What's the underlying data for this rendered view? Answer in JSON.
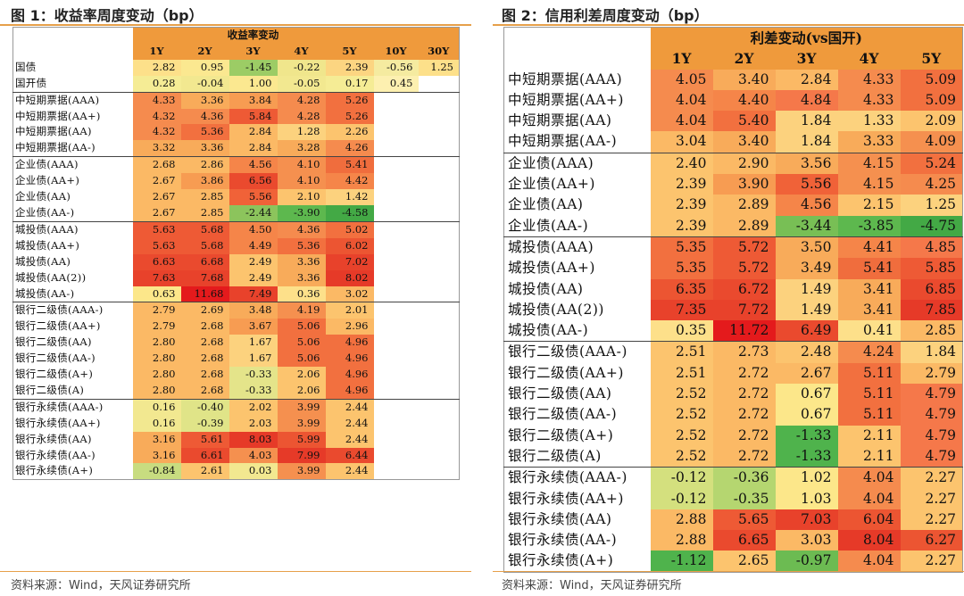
{
  "fig1": {
    "title": "图 1：收益率周度变动（bp）",
    "header_group": "收益率变动",
    "columns": [
      "1Y",
      "2Y",
      "3Y",
      "4Y",
      "5Y",
      "10Y",
      "30Y"
    ],
    "source": "资料来源：Wind，天风证券研究所",
    "rows": [
      {
        "name": "国债",
        "values": [
          "2.82",
          "0.95",
          "-1.45",
          "-0.22",
          "2.39",
          "-0.56",
          "1.25"
        ],
        "colors": [
          "#fde08a",
          "#fbe890",
          "#9ccc65",
          "#f0e68c",
          "#fcd581",
          "#f5eba0",
          "#fde08a"
        ],
        "gtop": false
      },
      {
        "name": "国开债",
        "values": [
          "0.28",
          "-0.04",
          "1.00",
          "-0.05",
          "0.17",
          "0.45",
          ""
        ],
        "colors": [
          "#f5ec95",
          "#f2e890",
          "#fbe890",
          "#f2e890",
          "#f5ec95",
          "#fdf0b0",
          "#ffffff"
        ],
        "gtop": false
      },
      {
        "name": "中短期票据(AAA)",
        "values": [
          "4.33",
          "3.36",
          "3.84",
          "4.28",
          "5.26"
        ],
        "colors": [
          "#f58b4e",
          "#f8ab5a",
          "#f79c52",
          "#f58b4e",
          "#f2703f"
        ],
        "gtop": true
      },
      {
        "name": "中短期票据(AA+)",
        "values": [
          "4.32",
          "4.36",
          "5.84",
          "4.28",
          "5.26"
        ],
        "colors": [
          "#f58b4e",
          "#f58b4e",
          "#ee5a35",
          "#f58b4e",
          "#f2703f"
        ],
        "gtop": false
      },
      {
        "name": "中短期票据(AA)",
        "values": [
          "4.32",
          "5.36",
          "2.84",
          "1.28",
          "2.26"
        ],
        "colors": [
          "#f58b4e",
          "#f2703f",
          "#fbb965",
          "#fcd27e",
          "#fcc46e"
        ],
        "gtop": false
      },
      {
        "name": "中短期票据(AA-)",
        "values": [
          "3.32",
          "3.36",
          "2.84",
          "3.28",
          "4.26"
        ],
        "colors": [
          "#f8ab5a",
          "#f8ab5a",
          "#fbb965",
          "#f8ab5a",
          "#f58b4e"
        ],
        "gtop": false
      },
      {
        "name": "企业债(AAA)",
        "values": [
          "2.68",
          "2.86",
          "4.56",
          "4.10",
          "5.41"
        ],
        "colors": [
          "#fbb965",
          "#fbb965",
          "#f58549",
          "#f5904f",
          "#f06d3d"
        ],
        "gtop": true
      },
      {
        "name": "企业债(AA+)",
        "values": [
          "2.67",
          "3.86",
          "6.56",
          "4.10",
          "4.42"
        ],
        "colors": [
          "#fbb965",
          "#f79c52",
          "#ea4a2e",
          "#f5904f",
          "#f58549"
        ],
        "gtop": false
      },
      {
        "name": "企业债(AA)",
        "values": [
          "2.67",
          "2.85",
          "5.56",
          "2.10",
          "1.42"
        ],
        "colors": [
          "#fbb965",
          "#fbb965",
          "#f06238",
          "#fcc46e",
          "#fcd27e"
        ],
        "gtop": false
      },
      {
        "name": "企业债(AA-)",
        "values": [
          "2.67",
          "2.85",
          "-2.44",
          "-3.90",
          "-4.58"
        ],
        "colors": [
          "#fbb965",
          "#fbb965",
          "#8cc45c",
          "#5db84e",
          "#43a945"
        ],
        "gtop": false
      },
      {
        "name": "城投债(AAA)",
        "values": [
          "5.63",
          "5.68",
          "4.50",
          "4.36",
          "5.02"
        ],
        "colors": [
          "#ee5a35",
          "#ee5a35",
          "#f58549",
          "#f58b4e",
          "#f2703f"
        ],
        "gtop": true
      },
      {
        "name": "城投债(AA+)",
        "values": [
          "5.63",
          "5.68",
          "4.49",
          "5.36",
          "6.02"
        ],
        "colors": [
          "#ee5a35",
          "#ee5a35",
          "#f58549",
          "#f2703f",
          "#ec5532"
        ],
        "gtop": false
      },
      {
        "name": "城投债(AA)",
        "values": [
          "6.63",
          "6.68",
          "2.49",
          "3.36",
          "7.02"
        ],
        "colors": [
          "#ea4a2e",
          "#ea4a2e",
          "#fcc46e",
          "#f8ab5a",
          "#e8422b"
        ],
        "gtop": false
      },
      {
        "name": "城投债(AA(2))",
        "values": [
          "7.63",
          "7.68",
          "2.49",
          "3.36",
          "8.02"
        ],
        "colors": [
          "#e8422b",
          "#e8422b",
          "#fcc46e",
          "#f8ab5a",
          "#e63a28"
        ],
        "gtop": false
      },
      {
        "name": "城投债(AA-)",
        "values": [
          "0.63",
          "11.68",
          "7.49",
          "0.36",
          "3.02"
        ],
        "colors": [
          "#fce78a",
          "#e41a1c",
          "#e8422b",
          "#fde08a",
          "#fbb965"
        ],
        "gtop": false
      },
      {
        "name": "银行二级债(AAA-)",
        "values": [
          "2.79",
          "2.69",
          "3.48",
          "4.19",
          "2.01"
        ],
        "colors": [
          "#fbb965",
          "#fbb965",
          "#f8ab5a",
          "#f5904f",
          "#fcc46e"
        ],
        "gtop": true
      },
      {
        "name": "银行二级债(AA+)",
        "values": [
          "2.79",
          "2.68",
          "3.67",
          "5.06",
          "2.96"
        ],
        "colors": [
          "#fbb965",
          "#fbb965",
          "#f79c52",
          "#f2703f",
          "#fbb965"
        ],
        "gtop": false
      },
      {
        "name": "银行二级债(AA)",
        "values": [
          "2.80",
          "2.68",
          "1.67",
          "5.06",
          "4.96"
        ],
        "colors": [
          "#fbb965",
          "#fbb965",
          "#fcd27e",
          "#f2703f",
          "#f2703f"
        ],
        "gtop": false
      },
      {
        "name": "银行二级债(AA-)",
        "values": [
          "2.80",
          "2.68",
          "1.67",
          "5.06",
          "4.96"
        ],
        "colors": [
          "#fbb965",
          "#fbb965",
          "#fcd27e",
          "#f2703f",
          "#f2703f"
        ],
        "gtop": false
      },
      {
        "name": "银行二级债(A+)",
        "values": [
          "2.80",
          "2.68",
          "-0.33",
          "2.06",
          "4.96"
        ],
        "colors": [
          "#fbb965",
          "#fbb965",
          "#e4e48a",
          "#fcc46e",
          "#f2703f"
        ],
        "gtop": false
      },
      {
        "name": "银行二级债(A)",
        "values": [
          "2.80",
          "2.68",
          "-0.33",
          "2.06",
          "4.96"
        ],
        "colors": [
          "#fbb965",
          "#fbb965",
          "#e4e48a",
          "#fcc46e",
          "#f2703f"
        ],
        "gtop": false
      },
      {
        "name": "银行永续债(AAA-)",
        "values": [
          "0.16",
          "-0.40",
          "2.02",
          "3.99",
          "2.44"
        ],
        "colors": [
          "#f2e890",
          "#e0e488",
          "#fcc46e",
          "#f5904f",
          "#fcc46e"
        ],
        "gtop": true
      },
      {
        "name": "银行永续债(AA+)",
        "values": [
          "0.16",
          "-0.39",
          "2.03",
          "3.99",
          "2.44"
        ],
        "colors": [
          "#f2e890",
          "#e0e488",
          "#fcc46e",
          "#f5904f",
          "#fcc46e"
        ],
        "gtop": false
      },
      {
        "name": "银行永续债(AA)",
        "values": [
          "3.16",
          "5.61",
          "8.03",
          "5.99",
          "2.44"
        ],
        "colors": [
          "#f8ab5a",
          "#ee5a35",
          "#e63a28",
          "#ec5532",
          "#fcc46e"
        ],
        "gtop": false
      },
      {
        "name": "银行永续债(AA-)",
        "values": [
          "3.16",
          "6.61",
          "4.03",
          "7.99",
          "6.44"
        ],
        "colors": [
          "#f8ab5a",
          "#ea4a2e",
          "#f5904f",
          "#e63a28",
          "#ea4a2e"
        ],
        "gtop": false
      },
      {
        "name": "银行永续债(A+)",
        "values": [
          "-0.84",
          "2.61",
          "0.03",
          "3.99",
          "2.44"
        ],
        "colors": [
          "#c8dc80",
          "#fcc46e",
          "#f2e890",
          "#f5904f",
          "#fcc46e"
        ],
        "gtop": false
      }
    ]
  },
  "fig2": {
    "title": "图 2：信用利差周度变动（bp）",
    "header_group": "利差变动(vs国开)",
    "columns": [
      "1Y",
      "2Y",
      "3Y",
      "4Y",
      "5Y"
    ],
    "source": "资料来源：Wind，天风证券研究所",
    "rows": [
      {
        "name": "中短期票据(AAA)",
        "values": [
          "4.05",
          "3.40",
          "2.84",
          "4.33",
          "5.09"
        ],
        "colors": [
          "#f58b4e",
          "#f8ab5a",
          "#fbb965",
          "#f58b4e",
          "#f2703f"
        ],
        "gtop": false
      },
      {
        "name": "中短期票据(AA+)",
        "values": [
          "4.04",
          "4.40",
          "4.84",
          "4.33",
          "5.09"
        ],
        "colors": [
          "#f58b4e",
          "#f58549",
          "#f5784a",
          "#f58b4e",
          "#f2703f"
        ],
        "gtop": false
      },
      {
        "name": "中短期票据(AA)",
        "values": [
          "4.04",
          "5.40",
          "1.84",
          "1.33",
          "2.09"
        ],
        "colors": [
          "#f58b4e",
          "#f2703f",
          "#fcd27e",
          "#fcd27e",
          "#fcc46e"
        ],
        "gtop": false
      },
      {
        "name": "中短期票据(AA-)",
        "values": [
          "3.04",
          "3.40",
          "1.84",
          "3.33",
          "4.09"
        ],
        "colors": [
          "#fbb965",
          "#f8ab5a",
          "#fcd27e",
          "#f8ab5a",
          "#f5904f"
        ],
        "gtop": false
      },
      {
        "name": "企业债(AAA)",
        "values": [
          "2.40",
          "2.90",
          "3.56",
          "4.15",
          "5.24"
        ],
        "colors": [
          "#fcc46e",
          "#fbb965",
          "#f8ab5a",
          "#f5904f",
          "#f2703f"
        ],
        "gtop": true
      },
      {
        "name": "企业债(AA+)",
        "values": [
          "2.39",
          "3.90",
          "5.56",
          "4.15",
          "4.25"
        ],
        "colors": [
          "#fcc46e",
          "#f79c52",
          "#f06238",
          "#f5904f",
          "#f58b4e"
        ],
        "gtop": false
      },
      {
        "name": "企业债(AA)",
        "values": [
          "2.39",
          "2.89",
          "4.56",
          "2.15",
          "1.25"
        ],
        "colors": [
          "#fcc46e",
          "#fbb965",
          "#f58549",
          "#fcc46e",
          "#fcd27e"
        ],
        "gtop": false
      },
      {
        "name": "企业债(AA-)",
        "values": [
          "2.39",
          "2.89",
          "-3.44",
          "-3.85",
          "-4.75"
        ],
        "colors": [
          "#fcc46e",
          "#fbb965",
          "#78bf55",
          "#5db84e",
          "#43a945"
        ],
        "gtop": false
      },
      {
        "name": "城投债(AAA)",
        "values": [
          "5.35",
          "5.72",
          "3.50",
          "4.41",
          "4.85"
        ],
        "colors": [
          "#f2703f",
          "#ee5a35",
          "#f8ab5a",
          "#f58549",
          "#f5784a"
        ],
        "gtop": true
      },
      {
        "name": "城投债(AA+)",
        "values": [
          "5.35",
          "5.72",
          "3.49",
          "5.41",
          "5.85"
        ],
        "colors": [
          "#f2703f",
          "#ee5a35",
          "#f8ab5a",
          "#f06d3d",
          "#ee5a35"
        ],
        "gtop": false
      },
      {
        "name": "城投债(AA)",
        "values": [
          "6.35",
          "6.72",
          "1.49",
          "3.41",
          "6.85"
        ],
        "colors": [
          "#ec5532",
          "#ea4a2e",
          "#fcd27e",
          "#f8ab5a",
          "#ea4a2e"
        ],
        "gtop": false
      },
      {
        "name": "城投债(AA(2))",
        "values": [
          "7.35",
          "7.72",
          "1.49",
          "3.41",
          "7.85"
        ],
        "colors": [
          "#e8422b",
          "#e8422b",
          "#fcd27e",
          "#f8ab5a",
          "#e63a28"
        ],
        "gtop": false
      },
      {
        "name": "城投债(AA-)",
        "values": [
          "0.35",
          "11.72",
          "6.49",
          "0.41",
          "2.85"
        ],
        "colors": [
          "#fde08a",
          "#e41a1c",
          "#ea4a2e",
          "#fde08a",
          "#fbb965"
        ],
        "gtop": false
      },
      {
        "name": "银行二级债(AAA-)",
        "values": [
          "2.51",
          "2.73",
          "2.48",
          "4.24",
          "1.84"
        ],
        "colors": [
          "#fcc46e",
          "#fbb965",
          "#fcc46e",
          "#f58b4e",
          "#fcd27e"
        ],
        "gtop": true
      },
      {
        "name": "银行二级债(AA+)",
        "values": [
          "2.51",
          "2.72",
          "2.67",
          "5.11",
          "2.79"
        ],
        "colors": [
          "#fcc46e",
          "#fbb965",
          "#fbb965",
          "#f2703f",
          "#fbb965"
        ],
        "gtop": false
      },
      {
        "name": "银行二级债(AA)",
        "values": [
          "2.52",
          "2.72",
          "0.67",
          "5.11",
          "4.79"
        ],
        "colors": [
          "#fcc46e",
          "#fbb965",
          "#fce78a",
          "#f2703f",
          "#f5784a"
        ],
        "gtop": false
      },
      {
        "name": "银行二级债(AA-)",
        "values": [
          "2.52",
          "2.72",
          "0.67",
          "5.11",
          "4.79"
        ],
        "colors": [
          "#fcc46e",
          "#fbb965",
          "#fce78a",
          "#f2703f",
          "#f5784a"
        ],
        "gtop": false
      },
      {
        "name": "银行二级债(A+)",
        "values": [
          "2.52",
          "2.72",
          "-1.33",
          "2.11",
          "4.79"
        ],
        "colors": [
          "#fcc46e",
          "#fbb965",
          "#4fb34c",
          "#fcc46e",
          "#f5784a"
        ],
        "gtop": false
      },
      {
        "name": "银行二级债(A)",
        "values": [
          "2.52",
          "2.72",
          "-1.33",
          "2.11",
          "4.79"
        ],
        "colors": [
          "#fcc46e",
          "#fbb965",
          "#4fb34c",
          "#fcc46e",
          "#f5784a"
        ],
        "gtop": false
      },
      {
        "name": "银行永续债(AAA-)",
        "values": [
          "-0.12",
          "-0.36",
          "1.02",
          "4.04",
          "2.27"
        ],
        "colors": [
          "#d4e07e",
          "#b5d670",
          "#fce78a",
          "#f58b4e",
          "#fcc46e"
        ],
        "gtop": true
      },
      {
        "name": "银行永续债(AA+)",
        "values": [
          "-0.12",
          "-0.35",
          "1.03",
          "4.04",
          "2.27"
        ],
        "colors": [
          "#d4e07e",
          "#b5d670",
          "#fce78a",
          "#f58b4e",
          "#fcc46e"
        ],
        "gtop": false
      },
      {
        "name": "银行永续债(AA)",
        "values": [
          "2.88",
          "5.65",
          "7.03",
          "6.04",
          "2.27"
        ],
        "colors": [
          "#fbb965",
          "#ee5a35",
          "#e8422b",
          "#ec5532",
          "#fcc46e"
        ],
        "gtop": false
      },
      {
        "name": "银行永续债(AA-)",
        "values": [
          "2.88",
          "6.65",
          "3.03",
          "8.04",
          "6.27"
        ],
        "colors": [
          "#fbb965",
          "#ea4a2e",
          "#fbb965",
          "#e63a28",
          "#ec5532"
        ],
        "gtop": false
      },
      {
        "name": "银行永续债(A+)",
        "values": [
          "-1.12",
          "2.65",
          "-0.97",
          "4.04",
          "2.27"
        ],
        "colors": [
          "#4fb34c",
          "#fcc46e",
          "#6cbb52",
          "#f58b4e",
          "#fcc46e"
        ],
        "gtop": false
      }
    ]
  }
}
